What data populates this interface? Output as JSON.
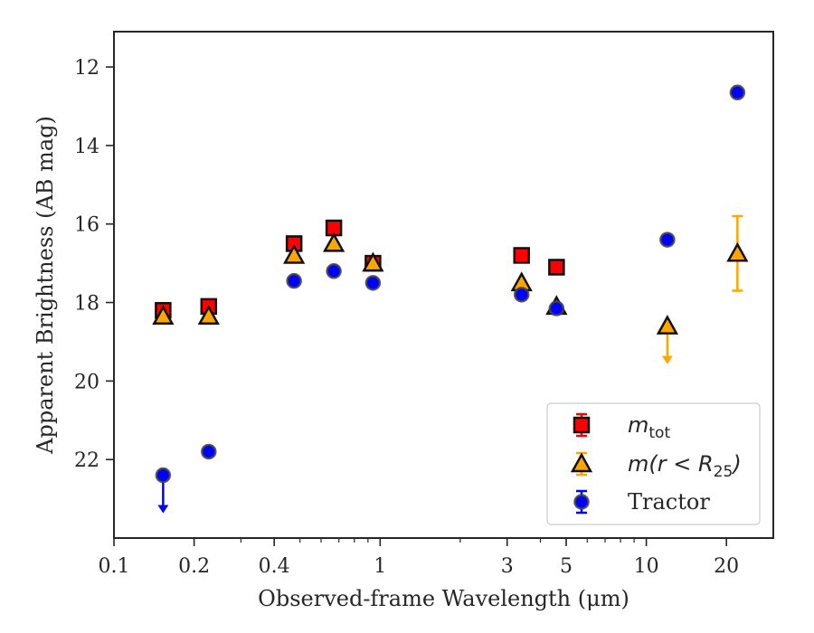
{
  "chart_data": {
    "type": "scatter",
    "xlabel": "Observed-frame Wavelength (μm)",
    "ylabel": "Apparent Brightness (AB mag)",
    "xscale": "log",
    "yaxis_inverted": true,
    "xlim": [
      0.1,
      30
    ],
    "ylim": [
      24,
      11.1
    ],
    "xticks": [
      {
        "value": 0.1,
        "label": "0.1"
      },
      {
        "value": 0.2,
        "label": "0.2"
      },
      {
        "value": 0.4,
        "label": "0.4"
      },
      {
        "value": 1,
        "label": "1"
      },
      {
        "value": 3,
        "label": "3"
      },
      {
        "value": 5,
        "label": "5"
      },
      {
        "value": 10,
        "label": "10"
      },
      {
        "value": 20,
        "label": "20"
      }
    ],
    "yticks": [
      12,
      14,
      16,
      18,
      20,
      22
    ],
    "legend_position": "bottom-right",
    "series": [
      {
        "key": "m_tot",
        "legend": "m_tot",
        "marker": "square",
        "color": "#ff0000",
        "points": [
          {
            "x": 0.153,
            "y": 18.2,
            "err": 0.1
          },
          {
            "x": 0.227,
            "y": 18.1,
            "err": 0.1
          },
          {
            "x": 0.475,
            "y": 16.5,
            "err": 0.05
          },
          {
            "x": 0.67,
            "y": 16.1,
            "err": 0.05
          },
          {
            "x": 0.94,
            "y": 17.0,
            "err": 0.1
          },
          {
            "x": 3.4,
            "y": 16.8,
            "err": 0.05
          },
          {
            "x": 4.6,
            "y": 17.1,
            "err": 0.05
          }
        ]
      },
      {
        "key": "m_r25",
        "legend": "m(r < R25)",
        "marker": "triangle",
        "color": "#ffa500",
        "points": [
          {
            "x": 0.153,
            "y": 18.35
          },
          {
            "x": 0.227,
            "y": 18.35
          },
          {
            "x": 0.475,
            "y": 16.8
          },
          {
            "x": 0.67,
            "y": 16.5
          },
          {
            "x": 0.94,
            "y": 17.0
          },
          {
            "x": 3.4,
            "y": 17.5
          },
          {
            "x": 4.6,
            "y": 18.1
          },
          {
            "x": 12.0,
            "y": 18.6,
            "upper_limit": true
          },
          {
            "x": 22.0,
            "y": 16.75,
            "err": 0.95
          }
        ]
      },
      {
        "key": "tractor",
        "legend": "Tractor",
        "marker": "circle",
        "color": "#0000ff",
        "points": [
          {
            "x": 0.153,
            "y": 22.4,
            "upper_limit": true
          },
          {
            "x": 0.227,
            "y": 21.8
          },
          {
            "x": 0.475,
            "y": 17.45
          },
          {
            "x": 0.67,
            "y": 17.2
          },
          {
            "x": 0.94,
            "y": 17.5
          },
          {
            "x": 3.4,
            "y": 17.8
          },
          {
            "x": 4.6,
            "y": 18.15
          },
          {
            "x": 12.0,
            "y": 16.4
          },
          {
            "x": 22.0,
            "y": 12.65
          }
        ]
      }
    ]
  },
  "legend": {
    "items": [
      {
        "base": "m",
        "sub": "tot",
        "plain": ""
      },
      {
        "base": "m",
        "mid": "(r < R",
        "sub": "25",
        "tail": ")",
        "plain": ""
      },
      {
        "plain": "Tractor"
      }
    ]
  }
}
